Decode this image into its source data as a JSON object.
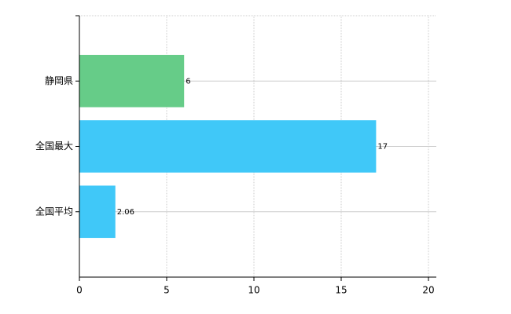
{
  "chart_data": {
    "type": "barh",
    "categories": [
      "静岡県",
      "全国最大",
      "全国平均"
    ],
    "values": [
      6,
      17,
      2.06
    ],
    "colors": [
      "#66cc88",
      "#40c8f8",
      "#40c8f8"
    ],
    "xlim": [
      0,
      20
    ],
    "xticks": [
      0,
      5,
      10,
      15,
      20
    ],
    "grid": true
  }
}
